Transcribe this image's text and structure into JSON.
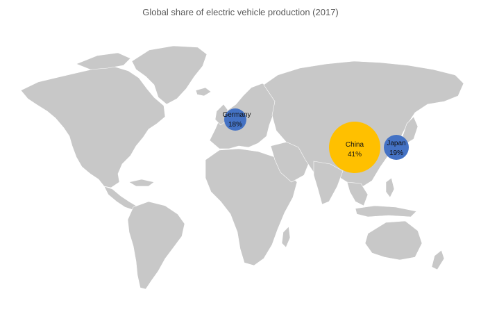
{
  "title": "Global share of electric vehicle production (2017)",
  "colors": {
    "land": "#c8c8c8",
    "background": "#ffffff",
    "bubble_large": "#ffc000",
    "bubble_small": "#4472c4"
  },
  "chart_data": {
    "type": "bubble-map",
    "title": "Global share of electric vehicle production (2017)",
    "unit": "%",
    "points": [
      {
        "country": "Germany",
        "share": 18,
        "label": "18%",
        "color": "#4472c4"
      },
      {
        "country": "China",
        "share": 41,
        "label": "41%",
        "color": "#ffc000"
      },
      {
        "country": "Japan",
        "share": 19,
        "label": "19%",
        "color": "#4472c4"
      }
    ]
  }
}
